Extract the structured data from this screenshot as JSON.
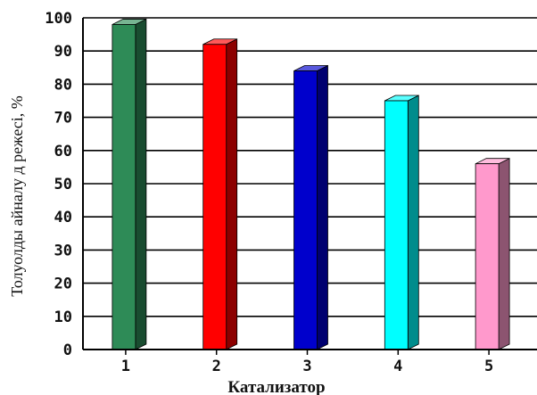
{
  "chart_data": {
    "type": "bar",
    "categories": [
      "1",
      "2",
      "3",
      "4",
      "5"
    ],
    "values": [
      98,
      92,
      84,
      75,
      56
    ],
    "xlabel": "Катализатор",
    "ylabel": "Толуолды  айналу д режесі, %",
    "ylim": [
      0,
      100
    ],
    "yticks": [
      "0",
      "10",
      "20",
      "30",
      "40",
      "50",
      "60",
      "70",
      "80",
      "90",
      "100"
    ],
    "grid": true,
    "colors": [
      "#2e8b57",
      "#ff0000",
      "#0000cc",
      "#00ffff",
      "#ff99cc"
    ]
  }
}
